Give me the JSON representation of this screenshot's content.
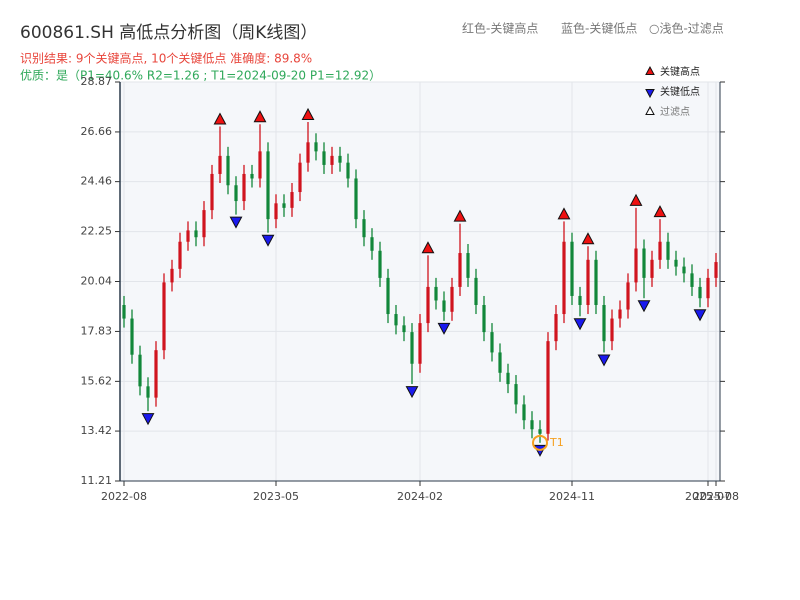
{
  "chart_data": {
    "type": "candlestick",
    "title": "600861.SH 高低点分析图（周K线图）",
    "subtitle": "识别结果: 9个关键高点, 10个关键低点  准确度: 89.8%",
    "subtitle2": "优质：是（P1=40.6%  R2=1.26 ; T1=2024-09-20 P1=12.92）",
    "top_legend": [
      "红色-关键高点",
      "蓝色-关键低点",
      "○浅色-过滤点"
    ],
    "annotation": {
      "text": "T1",
      "value": 12.9
    },
    "up_color": "#d0141e",
    "down_color": "#12873a",
    "grid": true,
    "ylim": [
      11.21,
      28.87
    ],
    "yticks": [
      11.21,
      13.42,
      15.62,
      17.83,
      20.04,
      22.25,
      24.46,
      26.66,
      28.87
    ],
    "categories": [
      "2022-08",
      null,
      null,
      null,
      null,
      null,
      null,
      null,
      null,
      null,
      null,
      null,
      null,
      null,
      null,
      null,
      null,
      null,
      null,
      "2023-05",
      null,
      null,
      null,
      null,
      null,
      null,
      null,
      null,
      null,
      null,
      null,
      null,
      null,
      null,
      null,
      null,
      null,
      "2024-02",
      null,
      null,
      null,
      null,
      null,
      null,
      null,
      null,
      null,
      null,
      null,
      null,
      null,
      null,
      null,
      null,
      null,
      null,
      "2024-11",
      null,
      null,
      null,
      null,
      null,
      null,
      null,
      null,
      null,
      null,
      null,
      null,
      null,
      null,
      null,
      null,
      "2025-07",
      "2025-08"
    ],
    "open": [
      19.0,
      18.4,
      16.8,
      15.4,
      14.9,
      17.0,
      20.0,
      20.6,
      21.8,
      22.3,
      22.0,
      23.2,
      24.8,
      25.6,
      24.3,
      23.6,
      24.8,
      24.6,
      25.8,
      22.8,
      23.5,
      23.3,
      24.0,
      25.3,
      26.2,
      25.8,
      25.2,
      25.6,
      25.3,
      24.6,
      22.8,
      22.0,
      21.4,
      20.2,
      18.6,
      18.1,
      17.8,
      16.4,
      18.2,
      19.8,
      19.2,
      18.7,
      19.8,
      21.3,
      20.2,
      19.0,
      17.8,
      16.9,
      16.0,
      15.5,
      14.6,
      13.9,
      13.5,
      13.3,
      17.4,
      18.6,
      21.8,
      19.4,
      19.0,
      21.0,
      19.0,
      17.4,
      18.4,
      18.8,
      20.0,
      21.5,
      20.2,
      21.0,
      21.8,
      21.0,
      20.7,
      20.4,
      19.8,
      19.3,
      20.2
    ],
    "high": [
      19.4,
      18.8,
      17.2,
      15.8,
      17.4,
      20.4,
      21.0,
      22.2,
      22.7,
      22.7,
      23.6,
      25.2,
      26.9,
      26.0,
      24.7,
      25.2,
      25.2,
      27.0,
      26.2,
      23.9,
      23.9,
      24.4,
      25.7,
      27.1,
      26.6,
      26.2,
      26.0,
      26.0,
      25.7,
      25.0,
      23.2,
      22.4,
      21.8,
      20.6,
      19.0,
      18.5,
      18.2,
      18.6,
      21.2,
      20.2,
      19.6,
      20.2,
      22.6,
      21.7,
      20.6,
      19.4,
      18.2,
      17.3,
      16.4,
      15.9,
      15.0,
      14.3,
      13.9,
      17.8,
      19.0,
      22.7,
      22.2,
      19.8,
      21.6,
      21.4,
      19.4,
      18.8,
      19.2,
      20.4,
      23.3,
      21.9,
      21.4,
      22.8,
      22.2,
      21.4,
      21.1,
      20.8,
      20.2,
      20.6,
      21.3
    ],
    "low": [
      18.0,
      16.4,
      15.0,
      14.3,
      14.5,
      16.6,
      19.6,
      20.2,
      21.4,
      21.6,
      21.6,
      22.8,
      24.4,
      23.9,
      23.0,
      23.2,
      24.2,
      24.2,
      22.2,
      22.4,
      22.9,
      22.9,
      23.6,
      24.9,
      25.4,
      24.8,
      24.8,
      24.9,
      24.2,
      22.4,
      21.6,
      21.0,
      19.8,
      18.2,
      17.7,
      17.4,
      15.5,
      16.0,
      17.8,
      18.8,
      18.3,
      18.3,
      19.4,
      19.8,
      18.6,
      17.4,
      16.5,
      15.6,
      15.1,
      14.2,
      13.5,
      13.1,
      12.9,
      13.0,
      17.0,
      18.2,
      19.0,
      18.5,
      18.6,
      18.6,
      16.9,
      17.0,
      18.0,
      18.4,
      19.6,
      19.3,
      19.8,
      20.6,
      20.6,
      20.3,
      20.0,
      19.4,
      18.9,
      18.9,
      19.8
    ],
    "close": [
      18.4,
      16.8,
      15.4,
      14.9,
      17.0,
      20.0,
      20.6,
      21.8,
      22.3,
      22.0,
      23.2,
      24.8,
      25.6,
      24.3,
      23.6,
      24.8,
      24.6,
      25.8,
      22.8,
      23.5,
      23.3,
      24.0,
      25.3,
      26.2,
      25.8,
      25.2,
      25.6,
      25.3,
      24.6,
      22.8,
      22.0,
      21.4,
      20.2,
      18.6,
      18.1,
      17.8,
      16.4,
      18.2,
      19.8,
      19.2,
      18.7,
      19.8,
      21.3,
      20.2,
      19.0,
      17.8,
      16.9,
      16.0,
      15.5,
      14.6,
      13.9,
      13.5,
      13.3,
      17.4,
      18.6,
      21.8,
      19.4,
      19.0,
      21.0,
      19.0,
      17.4,
      18.4,
      18.8,
      20.0,
      21.5,
      20.2,
      21.0,
      21.8,
      21.0,
      20.7,
      20.4,
      19.8,
      19.3,
      20.2,
      20.9
    ],
    "series": [
      {
        "name": "关键高点",
        "color": "#ee1111",
        "marker": "up",
        "values": [
          null,
          null,
          null,
          null,
          null,
          null,
          null,
          null,
          null,
          null,
          null,
          null,
          26.9,
          null,
          null,
          null,
          null,
          27.0,
          null,
          null,
          null,
          null,
          null,
          27.1,
          null,
          null,
          null,
          null,
          null,
          null,
          null,
          null,
          null,
          null,
          null,
          null,
          null,
          null,
          21.2,
          null,
          null,
          null,
          22.6,
          null,
          null,
          null,
          null,
          null,
          null,
          null,
          null,
          null,
          null,
          null,
          null,
          22.7,
          null,
          null,
          21.6,
          null,
          null,
          null,
          null,
          null,
          23.3,
          null,
          null,
          22.8,
          null,
          null,
          null,
          null,
          null,
          null,
          null
        ]
      },
      {
        "name": "关键低点",
        "color": "#1a1aee",
        "marker": "down",
        "values": [
          null,
          null,
          null,
          14.3,
          null,
          null,
          null,
          null,
          null,
          null,
          null,
          null,
          null,
          null,
          23.0,
          null,
          null,
          null,
          22.2,
          null,
          null,
          null,
          null,
          null,
          null,
          null,
          null,
          null,
          null,
          null,
          null,
          null,
          null,
          null,
          null,
          null,
          15.5,
          null,
          null,
          null,
          18.3,
          null,
          null,
          null,
          null,
          null,
          null,
          null,
          null,
          null,
          null,
          null,
          12.9,
          null,
          null,
          null,
          null,
          18.5,
          null,
          null,
          16.9,
          null,
          null,
          null,
          null,
          19.3,
          null,
          null,
          null,
          null,
          null,
          null,
          18.9,
          null,
          null
        ]
      },
      {
        "name": "过滤点",
        "color": "#ffffff",
        "marker": "up",
        "values": [
          null,
          null,
          null,
          null,
          null,
          null,
          null,
          null,
          null,
          null,
          null,
          null,
          null,
          null,
          null,
          null,
          null,
          null,
          null,
          null,
          null,
          null,
          null,
          null,
          null,
          null,
          null,
          null,
          null,
          null,
          null,
          null,
          null,
          null,
          null,
          null,
          null,
          null,
          null,
          null,
          null,
          null,
          null,
          null,
          null,
          null,
          null,
          null,
          null,
          null,
          null,
          null,
          null,
          null,
          null,
          null,
          null,
          null,
          null,
          null,
          null,
          null,
          null,
          null,
          null,
          null,
          null,
          null,
          null,
          null,
          null,
          null,
          null,
          null,
          null
        ]
      }
    ]
  }
}
